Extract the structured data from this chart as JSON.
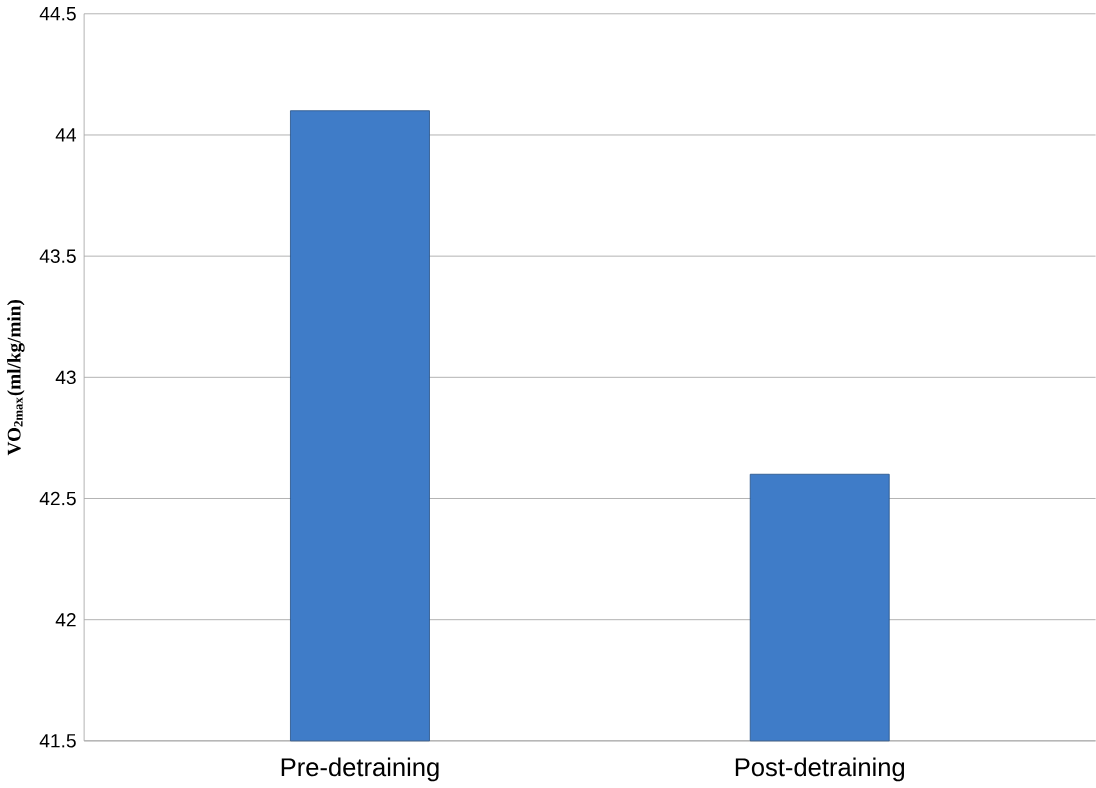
{
  "chart_data": {
    "type": "bar",
    "ylabel": "VO$_{2max}$(ml/kg/min)",
    "categories": [
      "Pre-detraining",
      "Post-detraining"
    ],
    "values": [
      44.1,
      42.6
    ],
    "color": "#3f7cc8",
    "ylim": [
      41.5,
      44.5
    ],
    "yticks": [
      41.5,
      42,
      42.5,
      43,
      43.5,
      44,
      44.5
    ],
    "grid": "y"
  }
}
